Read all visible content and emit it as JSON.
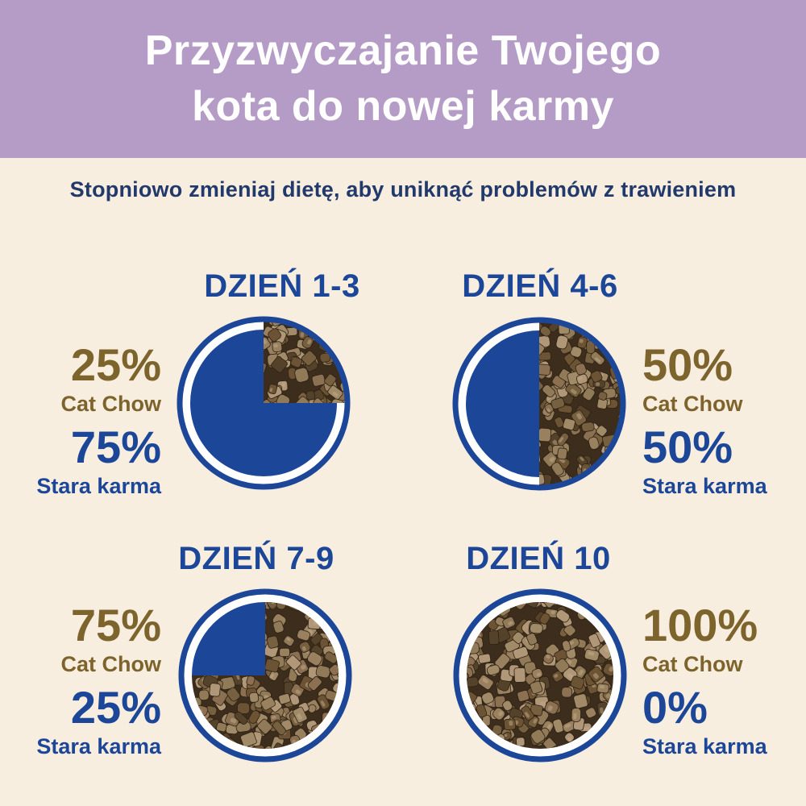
{
  "theme": {
    "header_bg": "#b49cc6",
    "page_bg": "#f8eee0",
    "header_text": "#ffffff",
    "subtitle_color": "#22396b",
    "blue": "#1c4697",
    "gold": "#7d632c",
    "ring_gap_white": "#ffffff",
    "kibble_base": "#3c2d1c",
    "kibble_shades": [
      "#8b7152",
      "#77603f",
      "#99805f",
      "#6b5334",
      "#a08a67",
      "#55422a",
      "#907a58",
      "#b09778"
    ]
  },
  "header": {
    "line1": "Przyzwyczajanie Twojego",
    "line2": "kota do nowej karmy"
  },
  "subtitle": {
    "text": "Stopniowo zmieniaj dietę, aby uniknąć problemów z trawieniem"
  },
  "charts": [
    {
      "title": "DZIEŃ 1-3",
      "new_pct_label": "25%",
      "new_food": "Cat Chow",
      "old_pct_label": "75%",
      "old_food": "Stara karma"
    },
    {
      "title": "DZIEŃ 4-6",
      "new_pct_label": "50%",
      "new_food": "Cat Chow",
      "old_pct_label": "50%",
      "old_food": "Stara karma"
    },
    {
      "title": "DZIEŃ 7-9",
      "new_pct_label": "75%",
      "new_food": "Cat Chow",
      "old_pct_label": "25%",
      "old_food": "Stara karma"
    },
    {
      "title": "DZIEŃ 10",
      "new_pct_label": "100%",
      "new_food": "Cat Chow",
      "old_pct_label": "0%",
      "old_food": "Stara karma"
    }
  ],
  "chart_data": [
    {
      "type": "pie",
      "title": "DZIEŃ 1-3",
      "start_angle_deg": 0,
      "direction": "clockwise",
      "photo_extends_to_ring": true,
      "slices": [
        {
          "label": "Cat Chow",
          "value": 25,
          "fill": "kibble-photo"
        },
        {
          "label": "Stara karma",
          "value": 75,
          "fill": "#1c4697"
        }
      ]
    },
    {
      "type": "pie",
      "title": "DZIEŃ 4-6",
      "start_angle_deg": 0,
      "direction": "clockwise",
      "photo_extends_to_ring": true,
      "slices": [
        {
          "label": "Cat Chow",
          "value": 50,
          "fill": "kibble-photo"
        },
        {
          "label": "Stara karma",
          "value": 50,
          "fill": "#1c4697"
        }
      ]
    },
    {
      "type": "pie",
      "title": "DZIEŃ 7-9",
      "start_angle_deg": 0,
      "direction": "clockwise",
      "photo_extends_to_ring": false,
      "slices": [
        {
          "label": "Cat Chow",
          "value": 75,
          "fill": "kibble-photo"
        },
        {
          "label": "Stara karma",
          "value": 25,
          "fill": "#1c4697"
        }
      ]
    },
    {
      "type": "pie",
      "title": "DZIEŃ 10",
      "start_angle_deg": 0,
      "direction": "clockwise",
      "photo_extends_to_ring": false,
      "slices": [
        {
          "label": "Cat Chow",
          "value": 100,
          "fill": "kibble-photo"
        },
        {
          "label": "Stara karma",
          "value": 0,
          "fill": "#1c4697"
        }
      ]
    }
  ]
}
